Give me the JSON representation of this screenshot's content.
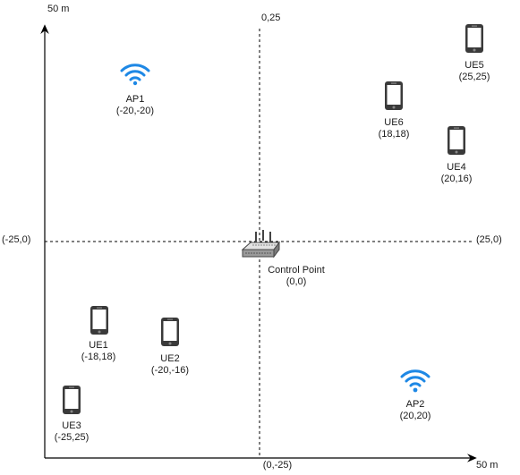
{
  "axes": {
    "y_axis_label": "50 m",
    "x_axis_label": "50 m",
    "top_center_label": "0,25",
    "bottom_center_label": "(0,-25)",
    "left_center_label": "(-25,0)",
    "right_center_label": "(25,0)"
  },
  "access_points": [
    {
      "name": "AP1",
      "coords": "(-20,-20)",
      "color": "#1E88E5"
    },
    {
      "name": "AP2",
      "coords": "(20,20)",
      "color": "#1E88E5"
    }
  ],
  "control_point": {
    "name": "Control Point",
    "coords": "(0,0)"
  },
  "user_equipments": [
    {
      "name": "UE1",
      "coords": "(-18,18)"
    },
    {
      "name": "UE2",
      "coords": "(-20,-16)"
    },
    {
      "name": "UE3",
      "coords": "(-25,25)"
    },
    {
      "name": "UE4",
      "coords": "(20,16)"
    },
    {
      "name": "UE5",
      "coords": "(25,25)"
    },
    {
      "name": "UE6",
      "coords": "(18,18)"
    }
  ],
  "colors": {
    "phone": "#333333",
    "wifi": "#1E88E5",
    "axis": "#000000"
  }
}
